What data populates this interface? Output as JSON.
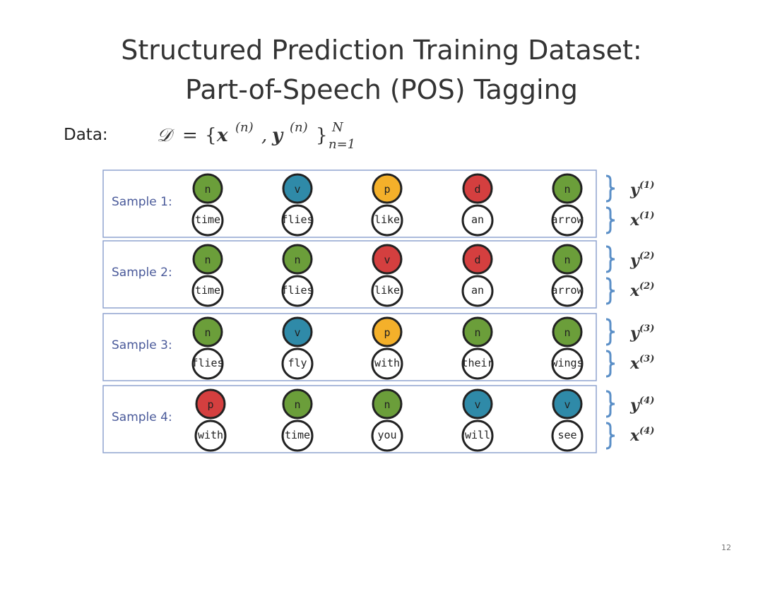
{
  "title": {
    "line1": "Structured Prediction Training Dataset:",
    "line2": "Part-of-Speech (POS) Tagging"
  },
  "data_label": "Data:",
  "formula": {
    "lhs": "𝒟",
    "eq": "=",
    "open": "{",
    "x": "x",
    "x_sup": "(n)",
    "comma": ",",
    "y": "y",
    "y_sup": "(n)",
    "close": "}",
    "upper": "N",
    "lower": "n=1"
  },
  "samples": [
    {
      "label": "Sample 1:",
      "tags": [
        {
          "text": "n",
          "color": "#6b9e3a"
        },
        {
          "text": "v",
          "color": "#2f8aa8"
        },
        {
          "text": "p",
          "color": "#f4b02a"
        },
        {
          "text": "d",
          "color": "#d43f3f"
        },
        {
          "text": "n",
          "color": "#6b9e3a"
        }
      ],
      "words": [
        "time",
        "flies",
        "like",
        "an",
        "arrow"
      ],
      "y": "y",
      "y_sup": "(1)",
      "x": "x",
      "x_sup": "(1)"
    },
    {
      "label": "Sample 2:",
      "tags": [
        {
          "text": "n",
          "color": "#6b9e3a"
        },
        {
          "text": "n",
          "color": "#6b9e3a"
        },
        {
          "text": "v",
          "color": "#d43f3f"
        },
        {
          "text": "d",
          "color": "#d43f3f"
        },
        {
          "text": "n",
          "color": "#6b9e3a"
        }
      ],
      "words": [
        "time",
        "flies",
        "like",
        "an",
        "arrow"
      ],
      "y": "y",
      "y_sup": "(2)",
      "x": "x",
      "x_sup": "(2)"
    },
    {
      "label": "Sample 3:",
      "tags": [
        {
          "text": "n",
          "color": "#6b9e3a"
        },
        {
          "text": "v",
          "color": "#2f8aa8"
        },
        {
          "text": "p",
          "color": "#f4b02a"
        },
        {
          "text": "n",
          "color": "#6b9e3a"
        },
        {
          "text": "n",
          "color": "#6b9e3a"
        }
      ],
      "words": [
        "flies",
        "fly",
        "with",
        "their",
        "wings"
      ],
      "y": "y",
      "y_sup": "(3)",
      "x": "x",
      "x_sup": "(3)"
    },
    {
      "label": "Sample 4:",
      "tags": [
        {
          "text": "p",
          "color": "#d43f3f"
        },
        {
          "text": "n",
          "color": "#6b9e3a"
        },
        {
          "text": "n",
          "color": "#6b9e3a"
        },
        {
          "text": "v",
          "color": "#2f8aa8"
        },
        {
          "text": "v",
          "color": "#2f8aa8"
        }
      ],
      "words": [
        "with",
        "time",
        "you",
        "will",
        "see"
      ],
      "y": "y",
      "y_sup": "(4)",
      "x": "x",
      "x_sup": "(4)"
    }
  ],
  "page_number": "12"
}
